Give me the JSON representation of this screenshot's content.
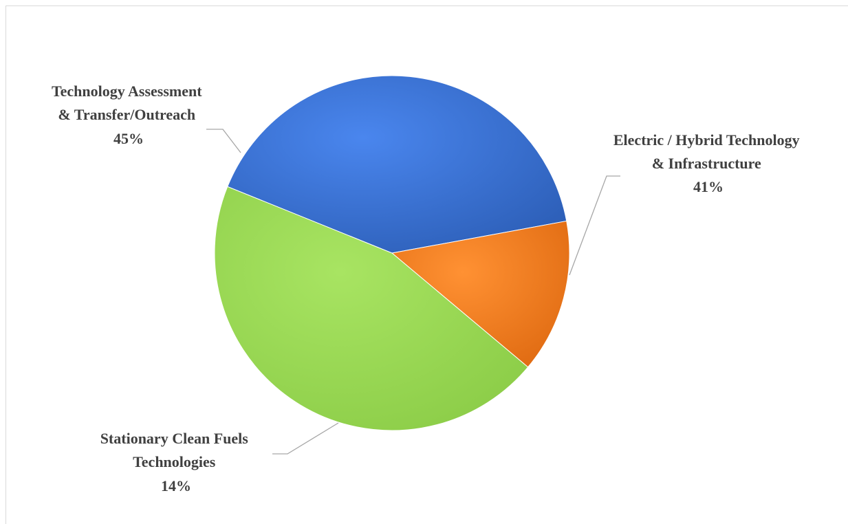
{
  "chart_data": {
    "type": "pie",
    "slices": [
      {
        "name": "Electric / Hybrid Technology & Infrastructure",
        "label_lines": [
          "Electric / Hybrid Technology",
          "& Infrastructure"
        ],
        "percent_label": "41%",
        "value": 41,
        "color": "#3a6fd8"
      },
      {
        "name": "Stationary Clean Fuels Technologies",
        "label_lines": [
          "Stationary Clean Fuels",
          "Technologies"
        ],
        "percent_label": "14%",
        "value": 14,
        "color": "#f47d1f"
      },
      {
        "name": "Technology Assessment & Transfer/Outreach",
        "label_lines": [
          "Technology Assessment",
          "& Transfer/Outreach"
        ],
        "percent_label": "45%",
        "value": 45,
        "color": "#9bdb55"
      }
    ],
    "legend": "none",
    "data_labels": "outside with leader lines"
  }
}
